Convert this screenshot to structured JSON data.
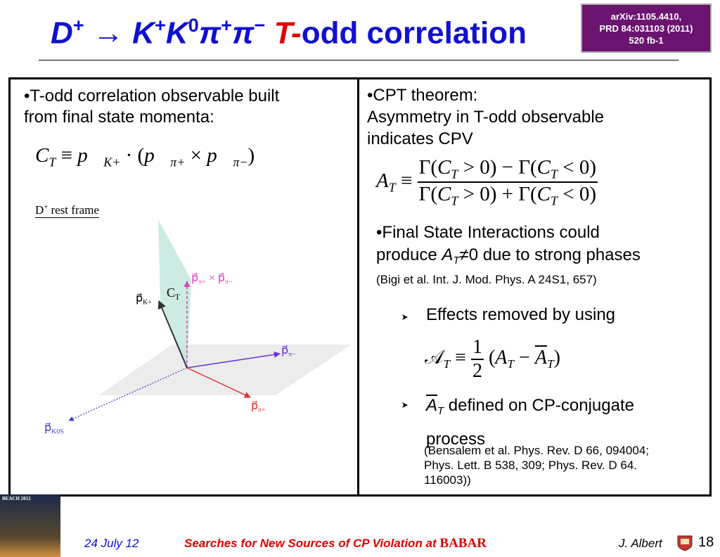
{
  "title": [
    {
      "text": "D",
      "style": "i"
    },
    {
      "text": "+",
      "style": "sup"
    },
    {
      "text": " → "
    },
    {
      "text": "K",
      "style": "i"
    },
    {
      "text": "+",
      "style": "sup"
    },
    {
      "text": "K",
      "style": "i"
    },
    {
      "text": "0",
      "style": "sup"
    },
    {
      "text": "π",
      "style": "i"
    },
    {
      "text": "+",
      "style": "sup"
    },
    {
      "text": "π",
      "style": "i"
    },
    {
      "text": "−",
      "style": "sup"
    },
    {
      "text": " T-",
      "style": "red"
    },
    {
      "text": "odd correlation"
    }
  ],
  "badge": [
    "arXiv:1105.4410,",
    "PRD 84:031103 (2011)",
    "520 fb-1"
  ],
  "left": {
    "bullet": [
      "•T-odd correlation observable built",
      "from final state momenta:"
    ],
    "equation": [
      {
        "text": "C",
        "style": "i"
      },
      {
        "text": "T",
        "style": "isub"
      },
      {
        "text": " ≡ "
      },
      {
        "text": "p⃗",
        "style": "i"
      },
      {
        "text": "K+",
        "style": "isub"
      },
      {
        "text": " · ("
      },
      {
        "text": "p⃗",
        "style": "i"
      },
      {
        "text": "π+",
        "style": "isub"
      },
      {
        "text": " × "
      },
      {
        "text": "p⃗",
        "style": "i"
      },
      {
        "text": "π−",
        "style": "isub"
      },
      {
        "text": ")"
      }
    ],
    "frame": [
      {
        "text": "D"
      },
      {
        "text": "+",
        "style": "sup"
      },
      {
        "text": " rest frame"
      }
    ],
    "cross": [
      {
        "text": "p⃗"
      },
      {
        "text": "π+",
        "style": "sub"
      },
      {
        "text": " × p⃗"
      },
      {
        "text": "π−",
        "style": "sub"
      }
    ],
    "ct": [
      {
        "text": "C"
      },
      {
        "text": "T",
        "style": "sub"
      }
    ],
    "pk": [
      {
        "text": "p⃗"
      },
      {
        "text": "K+",
        "style": "sub"
      }
    ],
    "ppim": [
      {
        "text": "p⃗"
      },
      {
        "text": "π−",
        "style": "sub"
      }
    ],
    "ppip": [
      {
        "text": "p⃗"
      },
      {
        "text": "π+",
        "style": "sub"
      }
    ],
    "pks": [
      {
        "text": "p⃗"
      },
      {
        "text": "K0S",
        "style": "sub"
      }
    ]
  },
  "right": {
    "cpt": [
      "•CPT theorem:",
      "Asymmetry in T-odd observable",
      "indicates CPV"
    ],
    "at_lhs": [
      {
        "text": "A",
        "style": "i"
      },
      {
        "text": "T",
        "style": "isub"
      },
      {
        "text": " ≡ "
      }
    ],
    "at_num": [
      {
        "text": "Γ("
      },
      {
        "text": "C",
        "style": "i"
      },
      {
        "text": "T",
        "style": "isub"
      },
      {
        "text": " > 0) − Γ("
      },
      {
        "text": "C",
        "style": "i"
      },
      {
        "text": "T",
        "style": "isub"
      },
      {
        "text": " < 0)"
      }
    ],
    "at_den": [
      {
        "text": "Γ("
      },
      {
        "text": "C",
        "style": "i"
      },
      {
        "text": "T",
        "style": "isub"
      },
      {
        "text": " > 0) + Γ("
      },
      {
        "text": "C",
        "style": "i"
      },
      {
        "text": "T",
        "style": "isub"
      },
      {
        "text": " < 0)"
      }
    ],
    "fsi": [
      [
        {
          "text": "•Final State Interactions could"
        }
      ],
      [
        {
          "text": "produce "
        },
        {
          "text": "A",
          "style": "i"
        },
        {
          "text": "T",
          "style": "isub"
        },
        {
          "text": "≠0 due to strong phases"
        }
      ]
    ],
    "fsi_ref": "(Bigi et al. Int. J. Mod. Phys. A 24S1, 657)",
    "effects": "Effects removed by using",
    "eq2_lhs": [
      {
        "text": "𝒜"
      },
      {
        "text": "T",
        "style": "isub"
      },
      {
        "text": " ≡ "
      }
    ],
    "eq2_num": "1",
    "eq2_den": "2",
    "eq2_rhs": [
      {
        "text": " ("
      },
      {
        "text": "A",
        "style": "i"
      },
      {
        "text": "T",
        "style": "isub"
      },
      {
        "text": " − "
      },
      {
        "text": "A",
        "style": "ibar"
      },
      {
        "text": "T",
        "style": "isub"
      },
      {
        "text": ")"
      }
    ],
    "defined": [
      [
        {
          "text": "A",
          "style": "ibar"
        },
        {
          "text": "T",
          "style": "isub"
        },
        {
          "text": " defined on CP-conjugate"
        }
      ],
      [
        {
          "text": "process"
        }
      ]
    ],
    "ref2": [
      "(Bensalem et al. Phys. Rev. D 66, 094004;",
      "Phys. Lett. B 538, 309; Phys. Rev. D 64.",
      "116003))"
    ]
  },
  "footer": {
    "date": "24 July 12",
    "talk": "Searches for New Sources of CP Violation at",
    "experiment": "BABAR",
    "author": "J. Albert",
    "page": "18"
  },
  "thumbnail": "BEACH 2012"
}
